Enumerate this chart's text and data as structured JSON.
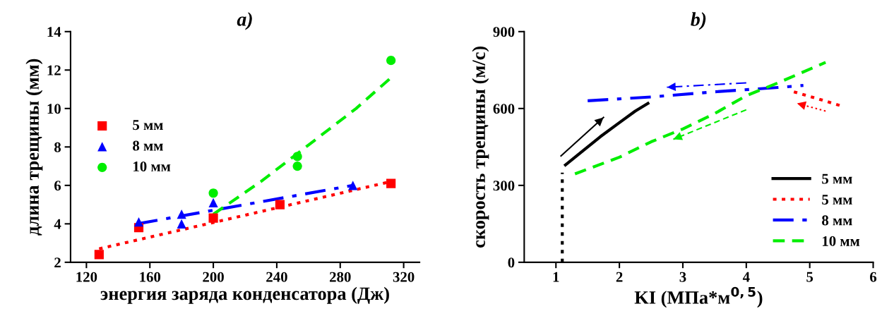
{
  "chart_data": [
    {
      "type": "scatter",
      "title": "a)",
      "xlabel": "энергия заряда конденсатора (Дж)",
      "ylabel": "длина трещины (мм)",
      "xlim": [
        110,
        330
      ],
      "xticks": [
        120,
        160,
        200,
        240,
        280,
        320
      ],
      "ylim": [
        2,
        14
      ],
      "yticks": [
        2,
        4,
        6,
        8,
        10,
        12,
        14
      ],
      "grid": false,
      "legend": "left",
      "series": [
        {
          "name": "5 мм",
          "marker": "square",
          "color": "#ff0000",
          "x": [
            128,
            153,
            200,
            242,
            312
          ],
          "values": [
            2.4,
            3.8,
            4.3,
            5.0,
            6.1
          ]
        },
        {
          "name": "8 мм",
          "marker": "triangle",
          "color": "#0000ff",
          "x": [
            153,
            180,
            180,
            200,
            288
          ],
          "values": [
            4.1,
            4.5,
            4.0,
            5.1,
            6.0
          ]
        },
        {
          "name": "10 мм",
          "marker": "circle",
          "color": "#00ee00",
          "x": [
            200,
            253,
            253,
            312
          ],
          "values": [
            5.6,
            7.5,
            7.0,
            12.5
          ]
        },
        {
          "type": "line",
          "line_style": "dotted",
          "color": "#ff0000",
          "x": [
            128,
            312
          ],
          "values": [
            2.7,
            6.2
          ]
        },
        {
          "type": "line",
          "line_style": "dashdot",
          "color": "#0000ff",
          "x": [
            152,
            288
          ],
          "values": [
            4.0,
            6.0
          ]
        },
        {
          "type": "line",
          "line_style": "dashed",
          "color": "#00ee00",
          "x": [
            200,
            230,
            260,
            290,
            312
          ],
          "values": [
            4.5,
            6.2,
            8.1,
            10.0,
            11.6
          ]
        }
      ]
    },
    {
      "type": "line",
      "title": "b)",
      "xlabel": "KI (МПа*м$^{0,5}$)",
      "ylabel": "скорость трещины (м/с)",
      "xlim": [
        0.5,
        6
      ],
      "xticks": [
        1,
        2,
        3,
        4,
        5,
        6
      ],
      "ylim": [
        0,
        900
      ],
      "yticks": [
        0,
        300,
        600,
        900
      ],
      "grid": false,
      "legend": "right",
      "series": [
        {
          "name": "5 мм",
          "line_style": "solid",
          "color": "#000000",
          "x": [
            1.15,
            1.4,
            1.7,
            2.0,
            2.25,
            2.45
          ],
          "values": [
            380,
            430,
            490,
            545,
            590,
            620
          ]
        },
        {
          "name": "5 мм",
          "line_style": "dotted",
          "color": "#ff0000",
          "x": [
            4.75,
            5.1,
            5.5
          ],
          "values": [
            665,
            640,
            610
          ]
        },
        {
          "name": "8 мм",
          "line_style": "dashdot",
          "color": "#0000ff",
          "x": [
            1.5,
            2.5,
            3.5,
            4.5,
            4.9
          ],
          "values": [
            630,
            645,
            665,
            682,
            690
          ]
        },
        {
          "name": "10 мм",
          "line_style": "dashed",
          "color": "#00ee00",
          "x": [
            1.3,
            2.0,
            2.5,
            3.0,
            3.5,
            4.0,
            4.5,
            5.25
          ],
          "values": [
            345,
            410,
            470,
            520,
            580,
            650,
            700,
            780
          ]
        },
        {
          "type": "line",
          "line_style": "dotted",
          "color": "#000000",
          "x": [
            1.1,
            1.1
          ],
          "values": [
            0,
            350
          ]
        },
        {
          "type": "line",
          "marker": "none",
          "line_style": "solid",
          "color": "#000000",
          "x": [
            1.08,
            1.75
          ],
          "values": [
            415,
            565
          ]
        },
        {
          "type": "line",
          "marker": "none",
          "line_style": "dashdot",
          "color": "#0000ff",
          "x": [
            4.0,
            2.75
          ],
          "values": [
            700,
            683
          ]
        },
        {
          "type": "line",
          "marker": "none",
          "line_style": "dashed",
          "color": "#00ee00",
          "x": [
            4.0,
            2.85
          ],
          "values": [
            595,
            480
          ]
        },
        {
          "type": "line",
          "marker": "none",
          "line_style": "dotted",
          "color": "#ff0000",
          "x": [
            5.25,
            4.8
          ],
          "values": [
            590,
            620
          ]
        }
      ]
    }
  ]
}
